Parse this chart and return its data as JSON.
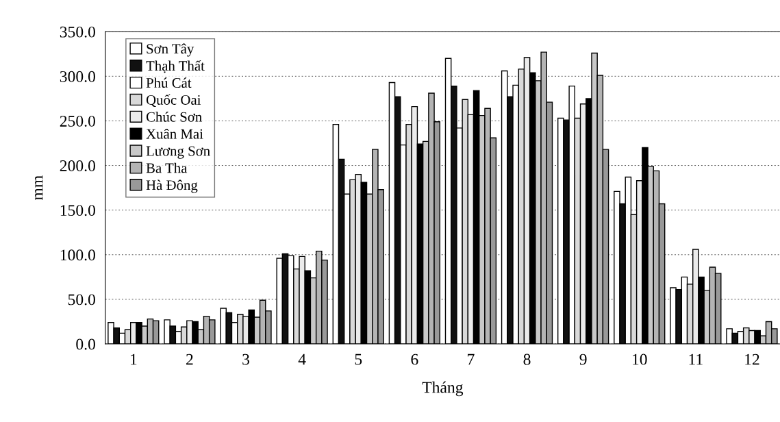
{
  "chart_data": {
    "type": "bar",
    "xlabel": "Tháng",
    "ylabel": "mm",
    "categories": [
      "1",
      "2",
      "3",
      "4",
      "5",
      "6",
      "7",
      "8",
      "9",
      "10",
      "11",
      "12"
    ],
    "series": [
      {
        "name": "Sơn Tây",
        "color": "#ffffff",
        "values": [
          24,
          27,
          40,
          96,
          246,
          293,
          320,
          306,
          253,
          171,
          63,
          17
        ]
      },
      {
        "name": "Thạh Thất",
        "color": "#111111",
        "values": [
          18,
          20,
          35,
          101,
          207,
          277,
          289,
          277,
          251,
          157,
          61,
          12
        ]
      },
      {
        "name": "Phú Cát",
        "color": "#ffffff",
        "values": [
          12,
          14,
          24,
          99,
          168,
          223,
          242,
          290,
          289,
          187,
          75,
          14
        ]
      },
      {
        "name": "Quốc Oai",
        "color": "#d9d9d9",
        "values": [
          16,
          19,
          33,
          84,
          184,
          246,
          274,
          308,
          253,
          145,
          67,
          18
        ]
      },
      {
        "name": "Chúc Sơn",
        "color": "#ebebeb",
        "values": [
          24,
          26,
          31,
          98,
          190,
          266,
          257,
          321,
          269,
          183,
          106,
          15
        ]
      },
      {
        "name": "Xuân Mai",
        "color": "#000000",
        "values": [
          24,
          25,
          38,
          82,
          181,
          224,
          284,
          304,
          275,
          220,
          75,
          15
        ]
      },
      {
        "name": "Lương Sơn",
        "color": "#c8c8c8",
        "values": [
          20,
          16,
          30,
          74,
          168,
          227,
          256,
          295,
          326,
          199,
          60,
          9
        ]
      },
      {
        "name": "Ba Tha",
        "color": "#b4b4b4",
        "values": [
          28,
          31,
          49,
          104,
          218,
          281,
          264,
          327,
          301,
          194,
          86,
          25
        ]
      },
      {
        "name": "Hà Đông",
        "color": "#999999",
        "values": [
          26,
          27,
          37,
          94,
          173,
          249,
          231,
          271,
          218,
          157,
          79,
          17
        ]
      }
    ],
    "ylim": [
      0,
      350
    ],
    "yticks": [
      {
        "value": 0,
        "label": "0.0"
      },
      {
        "value": 50,
        "label": "50.0"
      },
      {
        "value": 100,
        "label": "100.0"
      },
      {
        "value": 150,
        "label": "150.0"
      },
      {
        "value": 200,
        "label": "200.0"
      },
      {
        "value": 250,
        "label": "250.0"
      },
      {
        "value": 300,
        "label": "300.0"
      },
      {
        "value": 350,
        "label": "350.0"
      }
    ],
    "grid": "y",
    "legend": "top left"
  }
}
